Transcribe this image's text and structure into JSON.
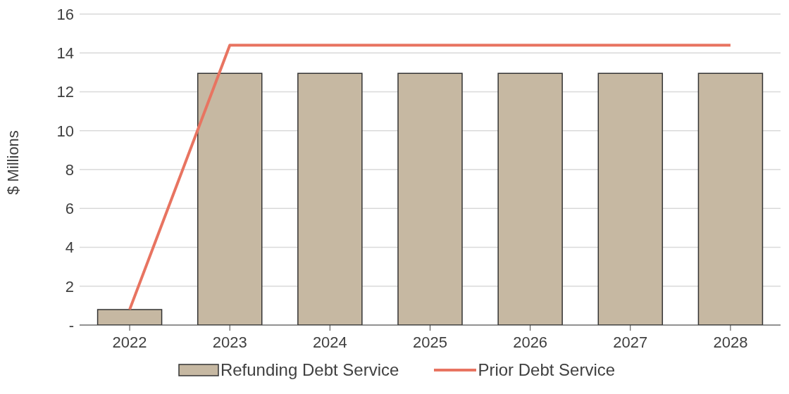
{
  "chart_data": {
    "type": "bar",
    "ylabel": "$ Millions",
    "categories": [
      "2022",
      "2023",
      "2024",
      "2025",
      "2026",
      "2027",
      "2028"
    ],
    "series": [
      {
        "name": "Refunding Debt Service",
        "color": "#c6b8a2",
        "values": [
          0.8,
          12.95,
          12.95,
          12.95,
          12.95,
          12.95,
          12.95
        ]
      },
      {
        "name": "Prior Debt Service",
        "type": "line",
        "color": "#e87461",
        "values": [
          0.8,
          14.4,
          14.4,
          14.4,
          14.4,
          14.4,
          14.4
        ]
      }
    ],
    "ylim": [
      0,
      16
    ],
    "yticks": [
      {
        "value": 0,
        "label": "-"
      },
      2,
      4,
      6,
      8,
      10,
      12,
      14,
      16
    ],
    "grid": "y",
    "legend": "bottom",
    "marker": "none",
    "line_style": "solid"
  }
}
